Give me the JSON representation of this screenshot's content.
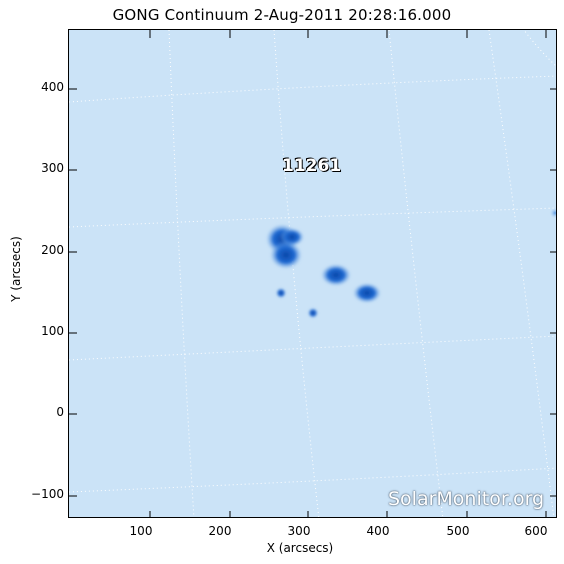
{
  "title": "GONG Continuum   2-Aug-2011 20:28:16.000",
  "axes": {
    "xlabel": "X (arcsecs)",
    "ylabel": "Y (arcsecs)",
    "xticks": [
      "100",
      "200",
      "300",
      "400",
      "500",
      "600"
    ],
    "yticks": [
      "400",
      "300",
      "200",
      "100",
      "0",
      "−100"
    ]
  },
  "region": {
    "label": "11261"
  },
  "watermark": "SolarMonitor.org",
  "colors": {
    "background": "#cfe5f8",
    "spot_dark": "#0d57c2",
    "spot_mid": "#3f84e0",
    "grid": "#ffffff"
  }
}
